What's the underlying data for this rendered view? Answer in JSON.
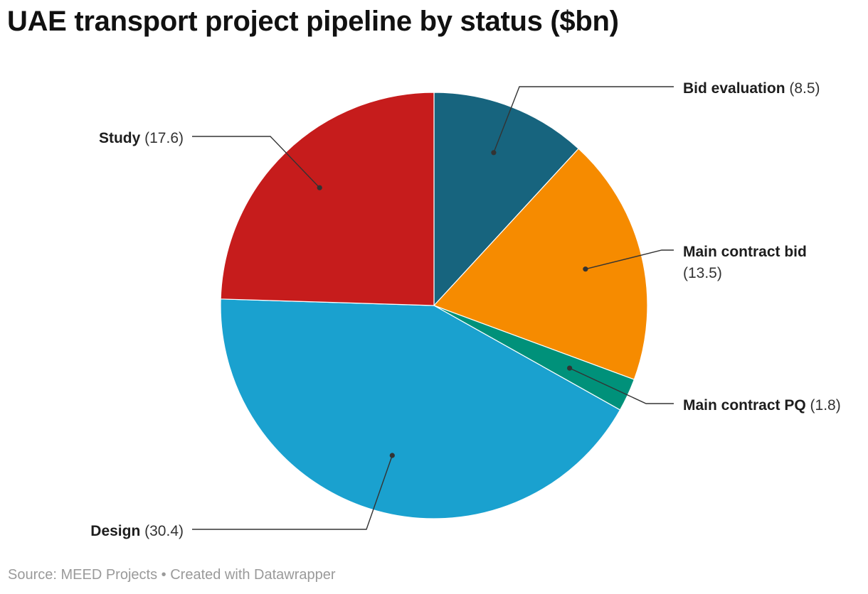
{
  "title": "UAE transport project pipeline by status ($bn)",
  "footer": {
    "source": "Source: MEED Projects",
    "separator": "•",
    "credit": "Created with Datawrapper"
  },
  "chart_data": {
    "type": "pie",
    "title": "UAE transport project pipeline by status ($bn)",
    "unit": "$bn",
    "start": "12 o'clock, clockwise",
    "slices": [
      {
        "label": "Bid evaluation",
        "value": 8.5,
        "value_text": "(8.5)",
        "color": "#17647e"
      },
      {
        "label": "Main contract bid",
        "value": 13.5,
        "value_text": "(13.5)",
        "color": "#f68b00"
      },
      {
        "label": "Main contract PQ",
        "value": 1.8,
        "value_text": "(1.8)",
        "color": "#00917a"
      },
      {
        "label": "Design",
        "value": 30.4,
        "value_text": "(30.4)",
        "color": "#1aa1cf"
      },
      {
        "label": "Study",
        "value": 17.6,
        "value_text": "(17.6)",
        "color": "#c61c1c"
      }
    ]
  }
}
